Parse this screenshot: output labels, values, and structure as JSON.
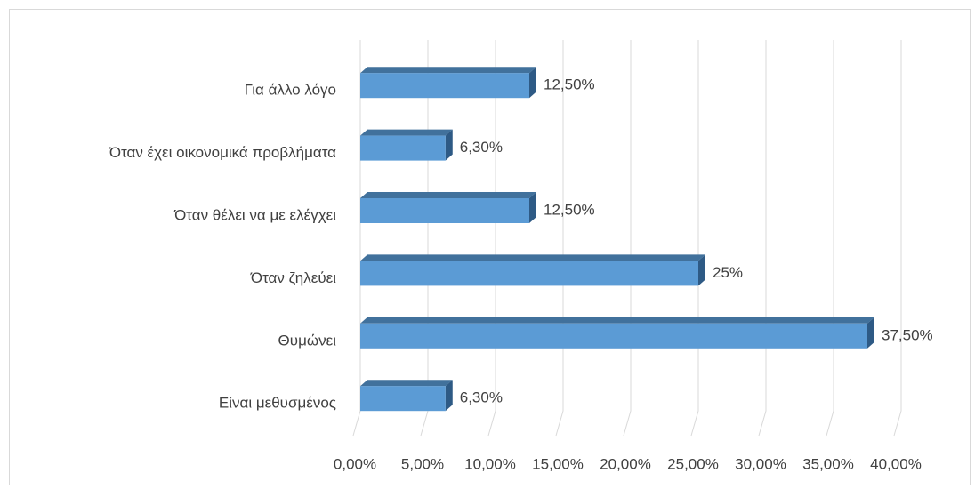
{
  "chart_data": {
    "type": "bar",
    "orientation": "horizontal",
    "categories": [
      "Για άλλο λόγο",
      "Όταν έχει οικονομικά προβλήματα",
      "Όταν θέλει να με ελέγχει",
      "Όταν ζηλεύει",
      "Θυμώνει",
      "Είναι μεθυσμένος"
    ],
    "values": [
      12.5,
      6.3,
      12.5,
      25,
      37.5,
      6.3
    ],
    "value_labels": [
      "12,50%",
      "6,30%",
      "12,50%",
      "25%",
      "37,50%",
      "6,30%"
    ],
    "color": "#5b9bd5",
    "xlim": [
      0,
      40
    ],
    "xticks": [
      {
        "value": 0,
        "label": "0,00%"
      },
      {
        "value": 5,
        "label": "5,00%"
      },
      {
        "value": 10,
        "label": "10,00%"
      },
      {
        "value": 15,
        "label": "15,00%"
      },
      {
        "value": 20,
        "label": "20,00%"
      },
      {
        "value": 25,
        "label": "25,00%"
      },
      {
        "value": 30,
        "label": "30,00%"
      },
      {
        "value": 35,
        "label": "35,00%"
      },
      {
        "value": 40,
        "label": "40,00%"
      }
    ],
    "grid": true
  }
}
